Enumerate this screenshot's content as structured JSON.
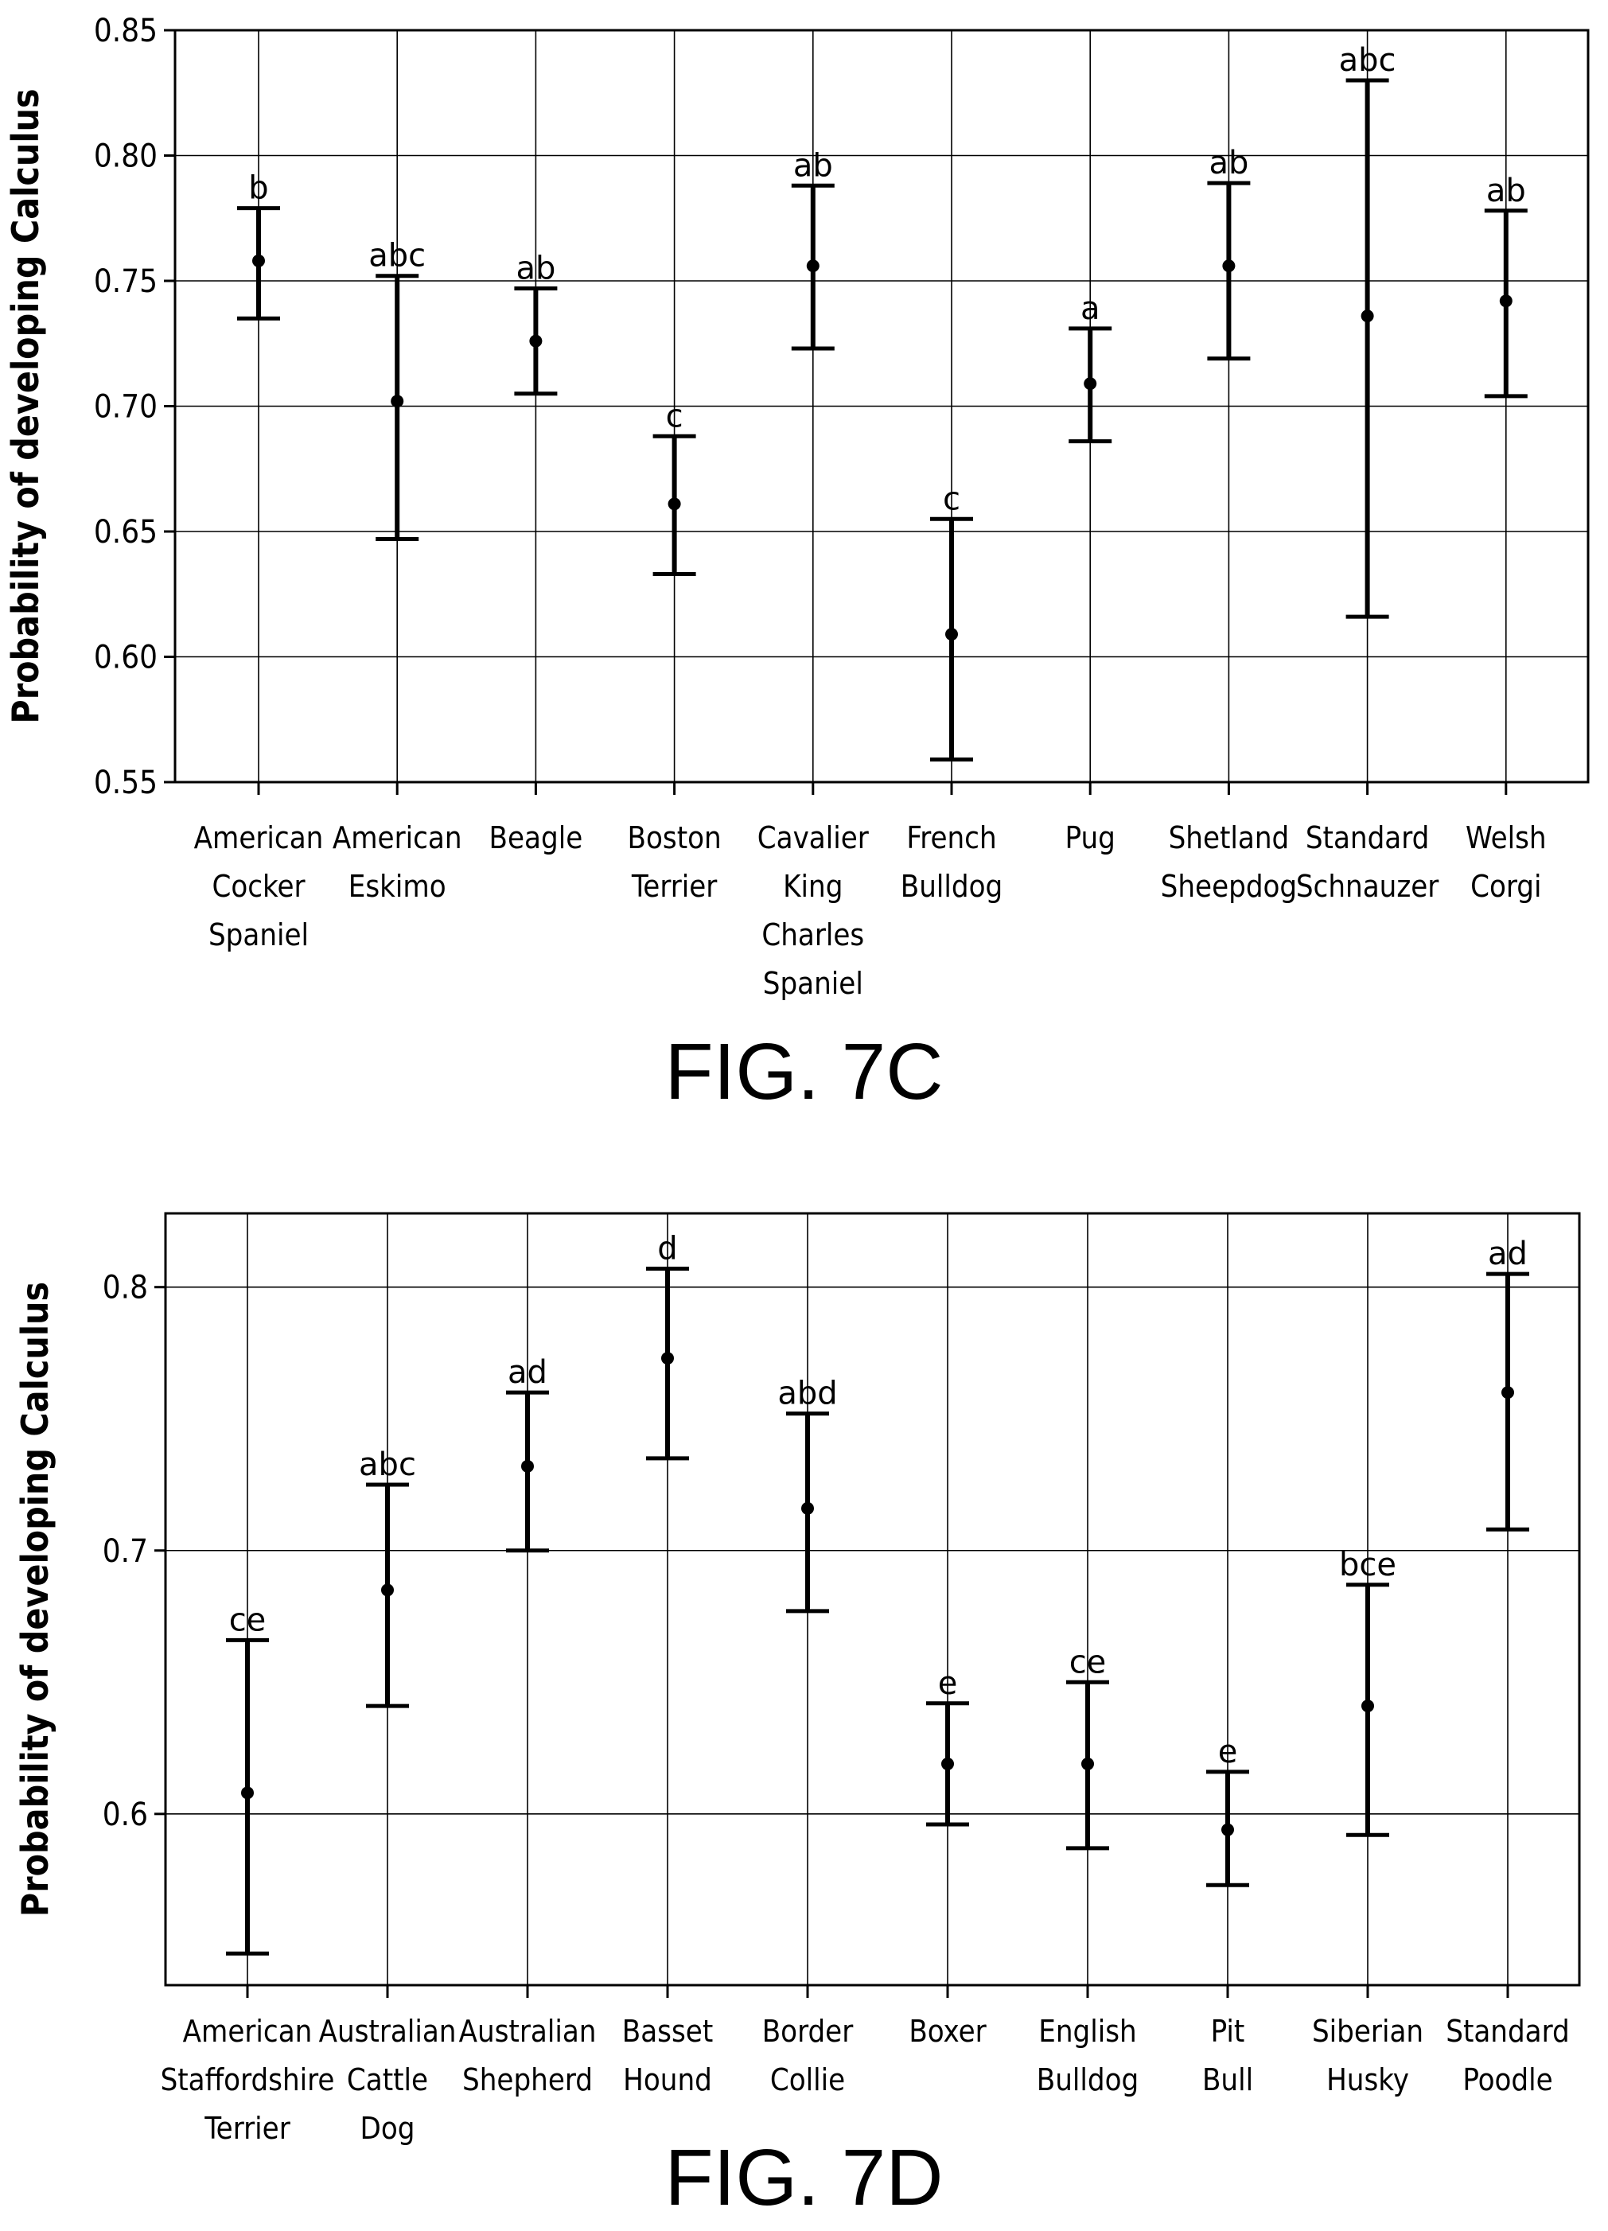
{
  "chart_data": [
    {
      "type": "error-bar",
      "caption": "FIG. 7C",
      "ylabel": "Probability of developing Calculus",
      "ylim": [
        0.55,
        0.85
      ],
      "yticks": [
        "0.55",
        "0.60",
        "0.65",
        "0.70",
        "0.75",
        "0.80",
        "0.85"
      ],
      "ytick_values": [
        0.55,
        0.6,
        0.65,
        0.7,
        0.75,
        0.8,
        0.85
      ],
      "grid": true,
      "categories": [
        [
          "American",
          "Cocker",
          "Spaniel"
        ],
        [
          "American",
          "Eskimo"
        ],
        [
          "Beagle"
        ],
        [
          "Boston",
          "Terrier"
        ],
        [
          "Cavalier",
          "King",
          "Charles",
          "Spaniel"
        ],
        [
          "French",
          "Bulldog"
        ],
        [
          "Pug"
        ],
        [
          "Shetland",
          "Sheepdog"
        ],
        [
          "Standard",
          "Schnauzer"
        ],
        [
          "Welsh",
          "Corgi"
        ]
      ],
      "values": [
        0.758,
        0.702,
        0.726,
        0.661,
        0.756,
        0.609,
        0.709,
        0.756,
        0.736,
        0.742
      ],
      "lower": [
        0.735,
        0.647,
        0.705,
        0.633,
        0.723,
        0.559,
        0.686,
        0.719,
        0.616,
        0.704
      ],
      "upper": [
        0.779,
        0.752,
        0.747,
        0.688,
        0.788,
        0.655,
        0.731,
        0.789,
        0.83,
        0.778
      ],
      "groups": [
        "b",
        "abc",
        "ab",
        "c",
        "ab",
        "c",
        "a",
        "ab",
        "abc",
        "ab"
      ]
    },
    {
      "type": "error-bar",
      "caption": "FIG. 7D",
      "ylabel": "Probability of developing Calculus",
      "ylim": [
        0.535,
        0.828
      ],
      "yticks": [
        "0.6",
        "0.7",
        "0.8"
      ],
      "ytick_values": [
        0.6,
        0.7,
        0.8
      ],
      "grid": true,
      "categories": [
        [
          "American",
          "Staffordshire",
          "Terrier"
        ],
        [
          "Australian",
          "Cattle",
          "Dog"
        ],
        [
          "Australian",
          "Shepherd"
        ],
        [
          "Basset",
          "Hound"
        ],
        [
          "Border",
          "Collie"
        ],
        [
          "Boxer"
        ],
        [
          "English",
          "Bulldog"
        ],
        [
          "Pit",
          "Bull"
        ],
        [
          "Siberian",
          "Husky"
        ],
        [
          "Standard",
          "Poodle"
        ]
      ],
      "values": [
        0.608,
        0.685,
        0.732,
        0.773,
        0.716,
        0.619,
        0.619,
        0.594,
        0.641,
        0.76
      ],
      "lower": [
        0.547,
        0.641,
        0.7,
        0.735,
        0.677,
        0.596,
        0.587,
        0.573,
        0.592,
        0.708
      ],
      "upper": [
        0.666,
        0.725,
        0.76,
        0.807,
        0.752,
        0.642,
        0.65,
        0.616,
        0.687,
        0.805
      ],
      "groups": [
        "ce",
        "abc",
        "ad",
        "d",
        "abd",
        "e",
        "ce",
        "e",
        "bce",
        "ad"
      ]
    }
  ]
}
